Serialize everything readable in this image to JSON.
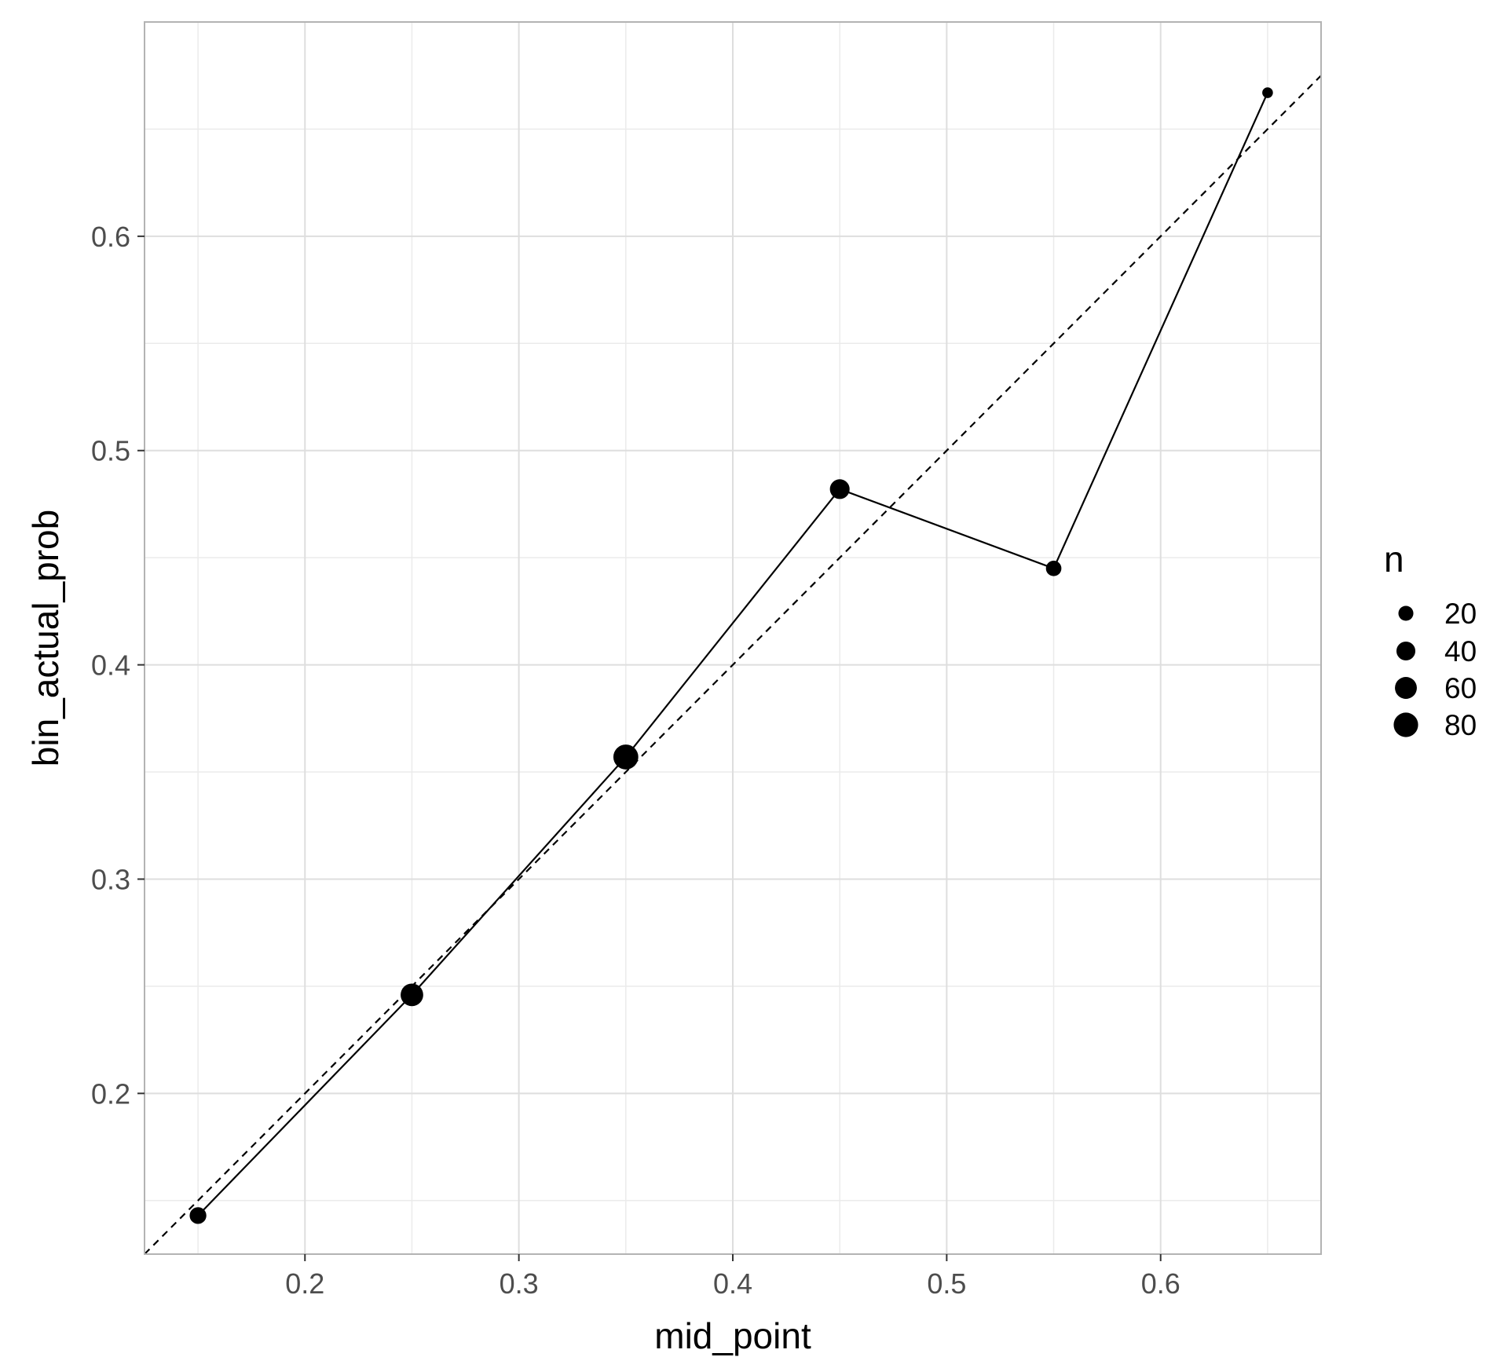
{
  "chart_data": {
    "type": "scatter",
    "xlabel": "mid_point",
    "ylabel": "bin_actual_prob",
    "xlim": [
      0.125,
      0.675
    ],
    "ylim": [
      0.125,
      0.7
    ],
    "x_ticks": [
      0.2,
      0.3,
      0.4,
      0.5,
      0.6
    ],
    "y_ticks": [
      0.2,
      0.3,
      0.4,
      0.5,
      0.6
    ],
    "x_tick_labels": [
      "0.2",
      "0.3",
      "0.4",
      "0.5",
      "0.6"
    ],
    "y_tick_labels": [
      "0.2",
      "0.3",
      "0.4",
      "0.5",
      "0.6"
    ],
    "grid": true,
    "series": [
      {
        "mark": "line+points",
        "x": [
          0.15,
          0.25,
          0.35,
          0.45,
          0.55,
          0.65
        ],
        "y": [
          0.143,
          0.246,
          0.357,
          0.482,
          0.445,
          0.667
        ],
        "n": [
          28,
          65,
          84,
          45,
          22,
          6
        ]
      }
    ],
    "reference_line": {
      "style": "dashed",
      "slope": 1,
      "intercept": 0
    },
    "legend": {
      "title": "n",
      "position": "right",
      "entries": [
        {
          "label": "20",
          "value": 20
        },
        {
          "label": "40",
          "value": 40
        },
        {
          "label": "60",
          "value": 60
        },
        {
          "label": "80",
          "value": 80
        }
      ]
    },
    "colors": {
      "points": "#000000",
      "line": "#000000",
      "grid": "#dedede",
      "panel_border": "#b3b3b3"
    }
  }
}
